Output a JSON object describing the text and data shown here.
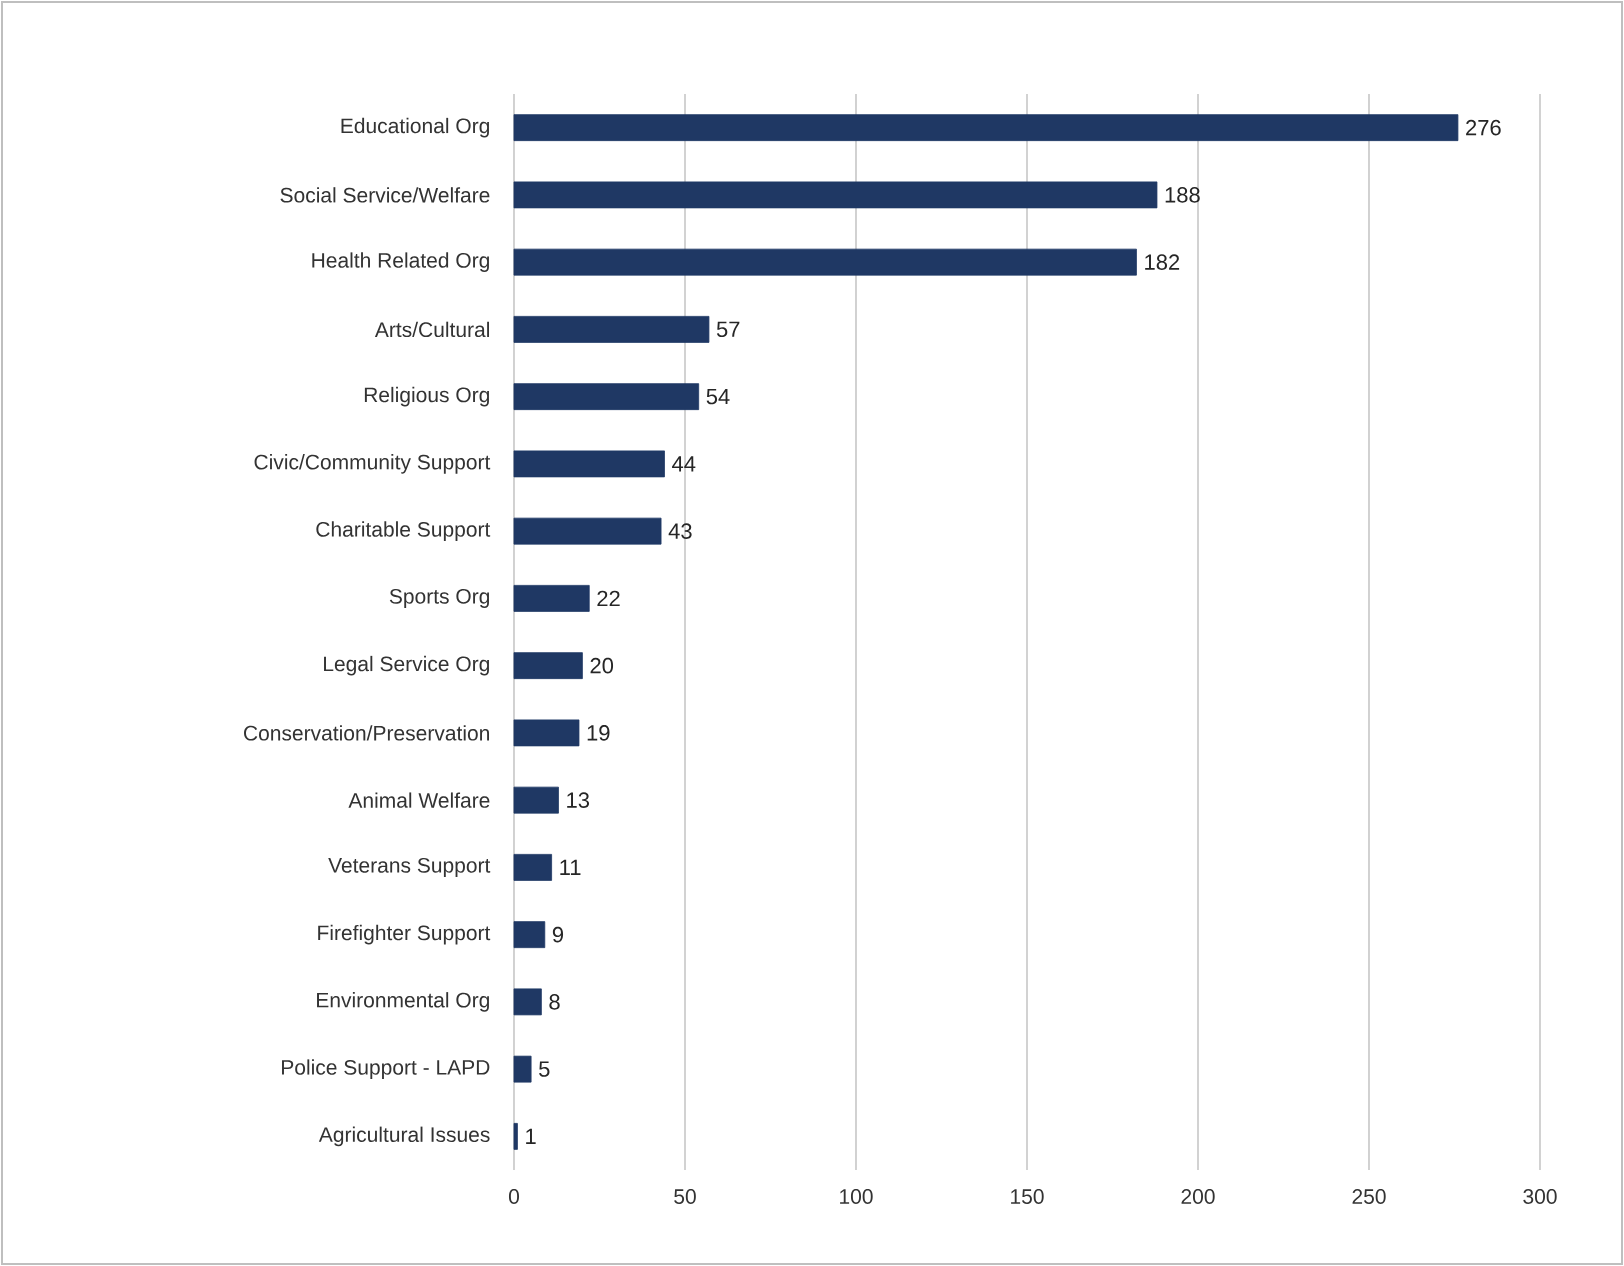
{
  "chart_data": {
    "type": "bar",
    "orientation": "horizontal",
    "categories": [
      "Educational Org",
      "Social Service/Welfare",
      "Health Related Org",
      "Arts/Cultural",
      "Religious Org",
      "Civic/Community Support",
      "Charitable Support",
      "Sports Org",
      "Legal Service Org",
      "Conservation/Preservation",
      "Animal Welfare",
      "Veterans Support",
      "Firefighter Support",
      "Environmental Org",
      "Police Support - LAPD",
      "Agricultural Issues"
    ],
    "values": [
      276,
      188,
      182,
      57,
      54,
      44,
      43,
      22,
      20,
      19,
      13,
      11,
      9,
      8,
      5,
      1
    ],
    "color": "#1f3864",
    "xlim": [
      0,
      300
    ],
    "xticks": [
      0,
      50,
      100,
      150,
      200,
      250,
      300
    ],
    "grid": "x",
    "data_labels": true
  }
}
